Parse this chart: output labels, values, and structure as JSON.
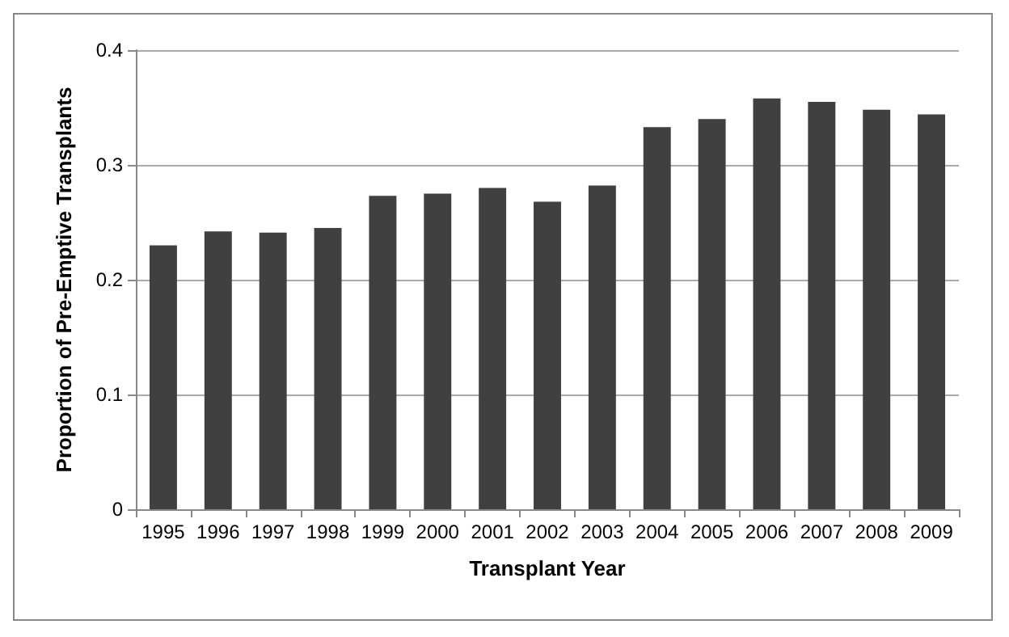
{
  "chart_data": {
    "type": "bar",
    "xlabel": "Transplant Year",
    "ylabel": "Proportion of Pre-Emptive Transplants",
    "categories": [
      "1995",
      "1996",
      "1997",
      "1998",
      "1999",
      "2000",
      "2001",
      "2002",
      "2003",
      "2004",
      "2005",
      "2006",
      "2007",
      "2008",
      "2009"
    ],
    "values": [
      0.23,
      0.242,
      0.241,
      0.245,
      0.273,
      0.275,
      0.28,
      0.268,
      0.282,
      0.333,
      0.34,
      0.358,
      0.355,
      0.348,
      0.344
    ],
    "color": "#404040",
    "ylim": [
      0,
      0.4
    ],
    "yticks": [
      0,
      0.1,
      0.2,
      0.3,
      0.4
    ],
    "grid": "y"
  }
}
